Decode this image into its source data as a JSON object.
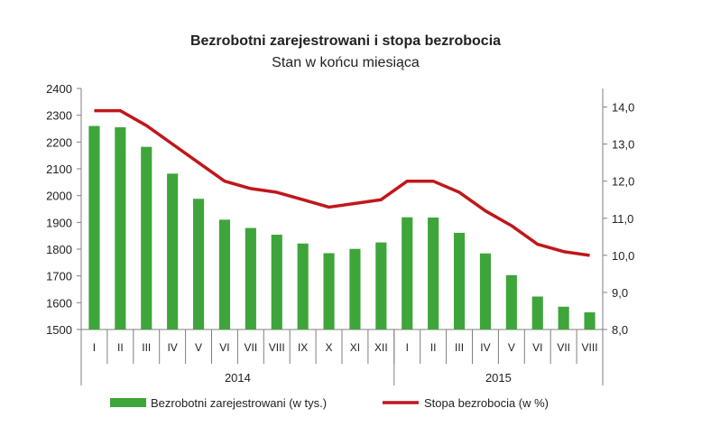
{
  "chart_data": {
    "type": "bar",
    "title": "Bezrobotni zarejestrowani i stopa bezrobocia",
    "subtitle": "Stan w końcu miesiąca",
    "categories": [
      "I",
      "II",
      "III",
      "IV",
      "V",
      "VI",
      "VII",
      "VIII",
      "IX",
      "X",
      "XI",
      "XII",
      "I",
      "II",
      "III",
      "IV",
      "V",
      "VI",
      "VII",
      "VIII"
    ],
    "groups": [
      {
        "label": "2014",
        "from": 0,
        "to": 11
      },
      {
        "label": "2015",
        "from": 12,
        "to": 19
      }
    ],
    "left_axis": {
      "ylim": [
        1500,
        2400
      ],
      "ticks": [
        "1500",
        "1600",
        "1700",
        "1800",
        "1900",
        "2000",
        "2100",
        "2200",
        "2300",
        "2400"
      ]
    },
    "right_axis": {
      "ylim": [
        8.0,
        14.5
      ],
      "ticks": [
        "8,0",
        "9,0",
        "10,0",
        "11,0",
        "12,0",
        "13,0",
        "14,0"
      ]
    },
    "series": [
      {
        "name": "Bezrobotni zarejestrowani  (w tys.)",
        "type": "bar",
        "axis": "left",
        "color": "#3ea53a",
        "values": [
          2260,
          2255,
          2182,
          2082,
          1988,
          1910,
          1879,
          1854,
          1821,
          1785,
          1801,
          1825,
          1919,
          1918,
          1861,
          1784,
          1703,
          1623,
          1585,
          1564
        ]
      },
      {
        "name": "Stopa bezrobocia  (w %)",
        "type": "line",
        "axis": "right",
        "color": "#c0171b",
        "values": [
          13.9,
          13.9,
          13.5,
          13.0,
          12.5,
          12.0,
          11.8,
          11.7,
          11.5,
          11.3,
          11.4,
          11.5,
          12.0,
          12.0,
          11.7,
          11.2,
          10.8,
          10.3,
          10.1,
          10.0
        ]
      }
    ],
    "grid": false,
    "legend_position": "bottom"
  }
}
